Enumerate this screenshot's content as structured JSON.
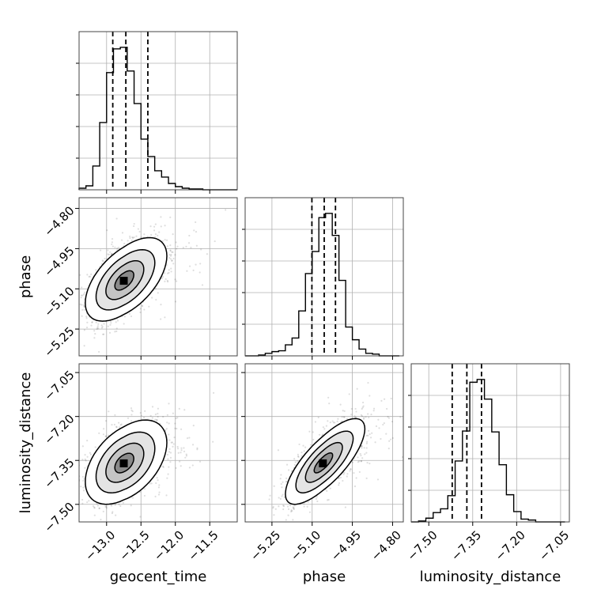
{
  "chart_data": {
    "type": "corner",
    "parameters": [
      {
        "name": "geocent_time",
        "ticks": [
          -13.0,
          -12.5,
          -12.0,
          -11.5
        ],
        "tick_labels": [
          "−13.0",
          "−12.5",
          "−12.0",
          "−11.5"
        ],
        "range": [
          -13.4,
          -11.1
        ]
      },
      {
        "name": "phase",
        "ticks": [
          -5.25,
          -5.1,
          -4.95,
          -4.8
        ],
        "tick_labels": [
          "−5.25",
          "−5.10",
          "−4.95",
          "−4.80"
        ],
        "range": [
          -5.35,
          -4.76
        ]
      },
      {
        "name": "luminosity_distance",
        "ticks": [
          -7.5,
          -7.35,
          -7.2,
          -7.05
        ],
        "tick_labels": [
          "−7.50",
          "−7.35",
          "−7.20",
          "−7.05"
        ],
        "range": [
          -7.56,
          -7.02
        ]
      }
    ],
    "histograms": [
      {
        "parameter": "geocent_time",
        "bin_edges": [
          -13.4,
          -13.3,
          -13.2,
          -13.1,
          -13.0,
          -12.9,
          -12.8,
          -12.7,
          -12.6,
          -12.5,
          -12.4,
          -12.3,
          -12.2,
          -12.1,
          -12.0,
          -11.9,
          -11.8,
          -11.7,
          -11.6,
          -11.5,
          -11.4,
          -11.3,
          -11.2,
          -11.1
        ],
        "counts": [
          2,
          5,
          30,
          85,
          148,
          178,
          180,
          150,
          109,
          64,
          42,
          24,
          16,
          8,
          4,
          2,
          1,
          1,
          0,
          0,
          0,
          0,
          0
        ],
        "quantiles": [
          -12.91,
          -12.72,
          -12.4
        ]
      },
      {
        "parameter": "phase",
        "bin_edges": [
          -5.35,
          -5.325,
          -5.3,
          -5.275,
          -5.25,
          -5.225,
          -5.2,
          -5.175,
          -5.15,
          -5.125,
          -5.1,
          -5.075,
          -5.05,
          -5.025,
          -5.0,
          -4.975,
          -4.95,
          -4.925,
          -4.9,
          -4.875,
          -4.85,
          -4.825,
          -4.8,
          -4.775
        ],
        "counts": [
          0,
          0,
          1,
          3,
          5,
          6,
          13,
          21,
          53,
          97,
          123,
          163,
          168,
          142,
          89,
          34,
          19,
          8,
          3,
          2,
          0,
          0,
          0
        ],
        "quantiles": [
          -5.101,
          -5.055,
          -5.013
        ]
      },
      {
        "parameter": "luminosity_distance",
        "bin_edges": [
          -7.56,
          -7.535,
          -7.51,
          -7.485,
          -7.46,
          -7.435,
          -7.41,
          -7.385,
          -7.36,
          -7.335,
          -7.31,
          -7.285,
          -7.26,
          -7.235,
          -7.21,
          -7.185,
          -7.16,
          -7.135,
          -7.11,
          -7.085,
          -7.06,
          -7.035
        ],
        "counts": [
          0,
          1,
          4,
          10,
          14,
          28,
          65,
          97,
          149,
          152,
          131,
          96,
          61,
          29,
          11,
          3,
          2,
          0,
          0,
          0,
          0
        ],
        "quantiles": [
          -7.42,
          -7.37,
          -7.32
        ]
      }
    ],
    "scatter_panels": [
      {
        "x": "geocent_time",
        "y": "phase",
        "center": [
          -12.75,
          -5.07
        ],
        "sd": [
          0.26,
          0.07
        ],
        "rho": 0.55
      },
      {
        "x": "geocent_time",
        "y": "luminosity_distance",
        "center": [
          -12.75,
          -7.36
        ],
        "sd": [
          0.26,
          0.065
        ],
        "rho": 0.45
      },
      {
        "x": "phase",
        "y": "luminosity_distance",
        "center": [
          -5.06,
          -7.36
        ],
        "sd": [
          0.065,
          0.065
        ],
        "rho": 0.75
      }
    ],
    "grid": true
  }
}
